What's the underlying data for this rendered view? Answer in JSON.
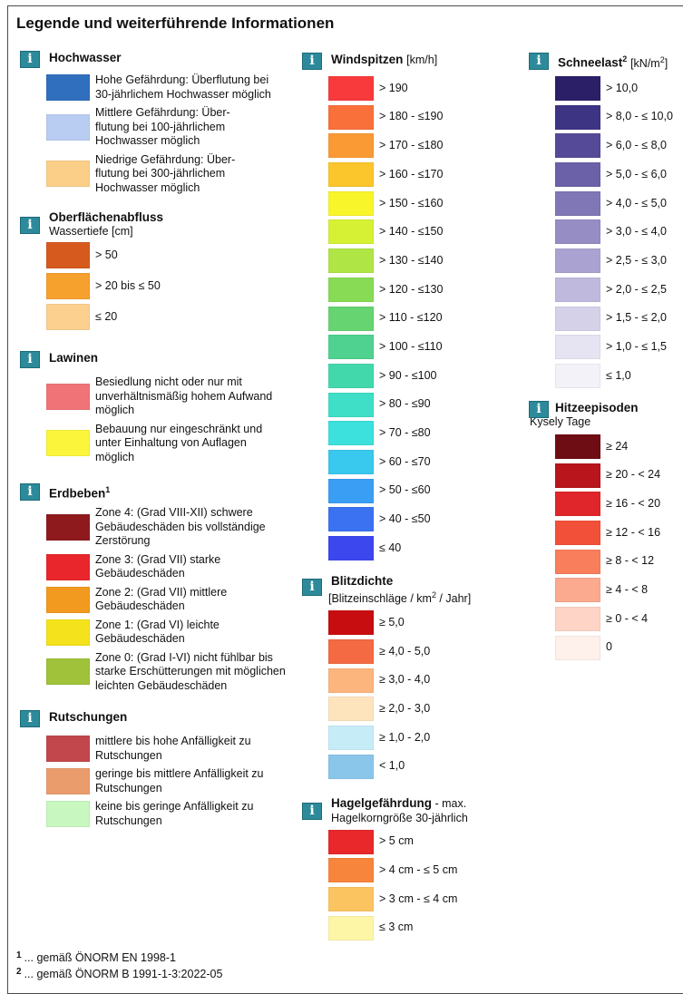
{
  "title": "Legende und weiterführende Informationen",
  "info_icon_glyph": "i",
  "hochwasser": {
    "title": "Hochwasser",
    "items": [
      {
        "color": "#2f6fbe",
        "label": "Hohe Gefährdung: Überflutung bei 30-jährlichem Hochwasser möglich"
      },
      {
        "color": "#b9cdf2",
        "label": "Mittlere Gefährdung: Über-flutung bei 100-jährlichem Hochwasser möglich"
      },
      {
        "color": "#fbcf87",
        "label": "Niedrige Gefährdung: Über-flutung bei 300-jährlichem Hochwasser möglich"
      }
    ]
  },
  "oberflaechenabfluss": {
    "title": "Oberflächenabfluss",
    "subtitle": "Wassertiefe [cm]",
    "items": [
      {
        "color": "#d65a1e",
        "label": "> 50"
      },
      {
        "color": "#f6a02e",
        "label": "> 20 bis ≤ 50"
      },
      {
        "color": "#fcd08f",
        "label": "≤ 20"
      }
    ]
  },
  "lawinen": {
    "title": "Lawinen",
    "items": [
      {
        "color": "#f07378",
        "label": "Besiedlung nicht oder nur mit unverhältnismäßig hohem Aufwand möglich"
      },
      {
        "color": "#fbf53c",
        "label": "Bebauung nur eingeschränkt und unter Einhaltung von Auflagen möglich"
      }
    ]
  },
  "erdbeben": {
    "title": "Erdbeben",
    "title_sup": "1",
    "items": [
      {
        "color": "#8e1a1e",
        "label": "Zone 4: (Grad VIII-XII) schwere Gebäudeschäden bis vollständige Zerstörung"
      },
      {
        "color": "#e8262b",
        "label": "Zone 3: (Grad VII) starke Gebäudeschäden"
      },
      {
        "color": "#f29a1f",
        "label": "Zone 2: (Grad VII) mittlere Gebäudeschäden"
      },
      {
        "color": "#f4e31c",
        "label": "Zone 1: (Grad VI) leichte Gebäudeschäden"
      },
      {
        "color": "#9fc23a",
        "label": "Zone 0: (Grad I-VI) nicht fühlbar bis starke Erschütterungen mit möglichen leichten Gebäudeschäden"
      }
    ]
  },
  "rutschungen": {
    "title": "Rutschungen",
    "items": [
      {
        "color": "#c1474c",
        "label": "mittlere bis hohe Anfälligkeit zu Rutschungen"
      },
      {
        "color": "#ea9c6d",
        "label": "geringe bis mittlere Anfälligkeit zu Rutschungen"
      },
      {
        "color": "#c9f7c0",
        "label": "keine bis geringe Anfälligkeit zu Rutschungen"
      }
    ]
  },
  "windspitzen": {
    "title": "Windspitzen",
    "title_unit": "[km/h]",
    "items": [
      {
        "color": "#f83a3c",
        "label": "> 190"
      },
      {
        "color": "#f9703a",
        "label": "> 180 - ≤190"
      },
      {
        "color": "#fa9a35",
        "label": "> 170 - ≤180"
      },
      {
        "color": "#fbc52c",
        "label": "> 160 - ≤170"
      },
      {
        "color": "#f8f52a",
        "label": "> 150 - ≤160"
      },
      {
        "color": "#d6f034",
        "label": "> 140 - ≤150"
      },
      {
        "color": "#b0e546",
        "label": "> 130 - ≤140"
      },
      {
        "color": "#88db55",
        "label": "> 120 - ≤130"
      },
      {
        "color": "#66d470",
        "label": "> 110 - ≤120"
      },
      {
        "color": "#4fd28f",
        "label": "> 100 - ≤110"
      },
      {
        "color": "#43d8ac",
        "label": "> 90 - ≤100"
      },
      {
        "color": "#3fdec6",
        "label": "> 80 - ≤90"
      },
      {
        "color": "#3ce0dc",
        "label": "> 70 - ≤80"
      },
      {
        "color": "#39c8ee",
        "label": "> 60 - ≤70"
      },
      {
        "color": "#3a9ff4",
        "label": "> 50 - ≤60"
      },
      {
        "color": "#3b72f2",
        "label": "> 40 - ≤50"
      },
      {
        "color": "#3d47ee",
        "label": "≤ 40"
      }
    ]
  },
  "blitzdichte": {
    "title": "Blitzdichte",
    "subtitle": "[Blitzeinschläge / km",
    "subtitle_sup": "2",
    "subtitle_tail": " / Jahr]",
    "items": [
      {
        "color": "#c80d10",
        "label": "≥ 5,0"
      },
      {
        "color": "#f46a43",
        "label": "≥ 4,0 - 5,0"
      },
      {
        "color": "#fdb57e",
        "label": "≥ 3,0 - 4,0"
      },
      {
        "color": "#fde4bd",
        "label": "≥ 2,0 - 3,0"
      },
      {
        "color": "#c6ecf8",
        "label": "≥ 1,0 - 2,0"
      },
      {
        "color": "#8ac6ea",
        "label": "< 1,0"
      }
    ]
  },
  "hagel": {
    "title": "Hagelgefährdung",
    "title_tail": " - max.",
    "subtitle": "Hagelkorngröße 30-jährlich",
    "items": [
      {
        "color": "#e8282b",
        "label": "> 5 cm"
      },
      {
        "color": "#f8853c",
        "label": "> 4 cm - ≤ 5 cm"
      },
      {
        "color": "#fcc460",
        "label": "> 3 cm - ≤ 4 cm"
      },
      {
        "color": "#fdf6a6",
        "label": "≤ 3 cm"
      }
    ]
  },
  "schneelast": {
    "title": "Schneelast",
    "title_sup": "2",
    "title_unit": "[kN/m",
    "title_unit_sup": "2",
    "title_unit_tail": "]",
    "items": [
      {
        "color": "#2b2068",
        "label": "> 10,0"
      },
      {
        "color": "#3e3484",
        "label": "> 8,0 - ≤ 10,0"
      },
      {
        "color": "#544a97",
        "label": "> 6,0 - ≤ 8,0"
      },
      {
        "color": "#6a61a8",
        "label": "> 5,0 - ≤ 6,0"
      },
      {
        "color": "#7f77b6",
        "label": "> 4,0 - ≤ 5,0"
      },
      {
        "color": "#958dc4",
        "label": "> 3,0 - ≤ 4,0"
      },
      {
        "color": "#aaa3d1",
        "label": "> 2,5 - ≤ 3,0"
      },
      {
        "color": "#bfbadd",
        "label": "> 2,0 - ≤ 2,5"
      },
      {
        "color": "#d5d1e9",
        "label": "> 1,5 - ≤ 2,0"
      },
      {
        "color": "#e6e3f2",
        "label": "> 1,0 - ≤ 1,5"
      },
      {
        "color": "#f4f2f9",
        "label": "≤ 1,0"
      }
    ]
  },
  "hitzeepisoden": {
    "title": "Hitzeepisoden",
    "subtitle": "Kysely Tage",
    "items": [
      {
        "color": "#6f0d14",
        "label": "≥ 24"
      },
      {
        "color": "#b8151c",
        "label": "≥ 20 - < 24"
      },
      {
        "color": "#e0262a",
        "label": "≥ 16 - < 20"
      },
      {
        "color": "#f25038",
        "label": "≥ 12 - < 16"
      },
      {
        "color": "#f87e5c",
        "label": "≥ 8 - < 12"
      },
      {
        "color": "#fbaa8f",
        "label": "≥ 4 - < 8"
      },
      {
        "color": "#fdd4c6",
        "label": "≥ 0 - < 4"
      },
      {
        "color": "#fef0ea",
        "label": "0"
      }
    ]
  },
  "footnotes": [
    {
      "num": "1",
      "text": "... gemäß ÖNORM EN 1998-1"
    },
    {
      "num": "2",
      "text": "... gemäß ÖNORM B 1991-1-3:2022-05"
    }
  ]
}
